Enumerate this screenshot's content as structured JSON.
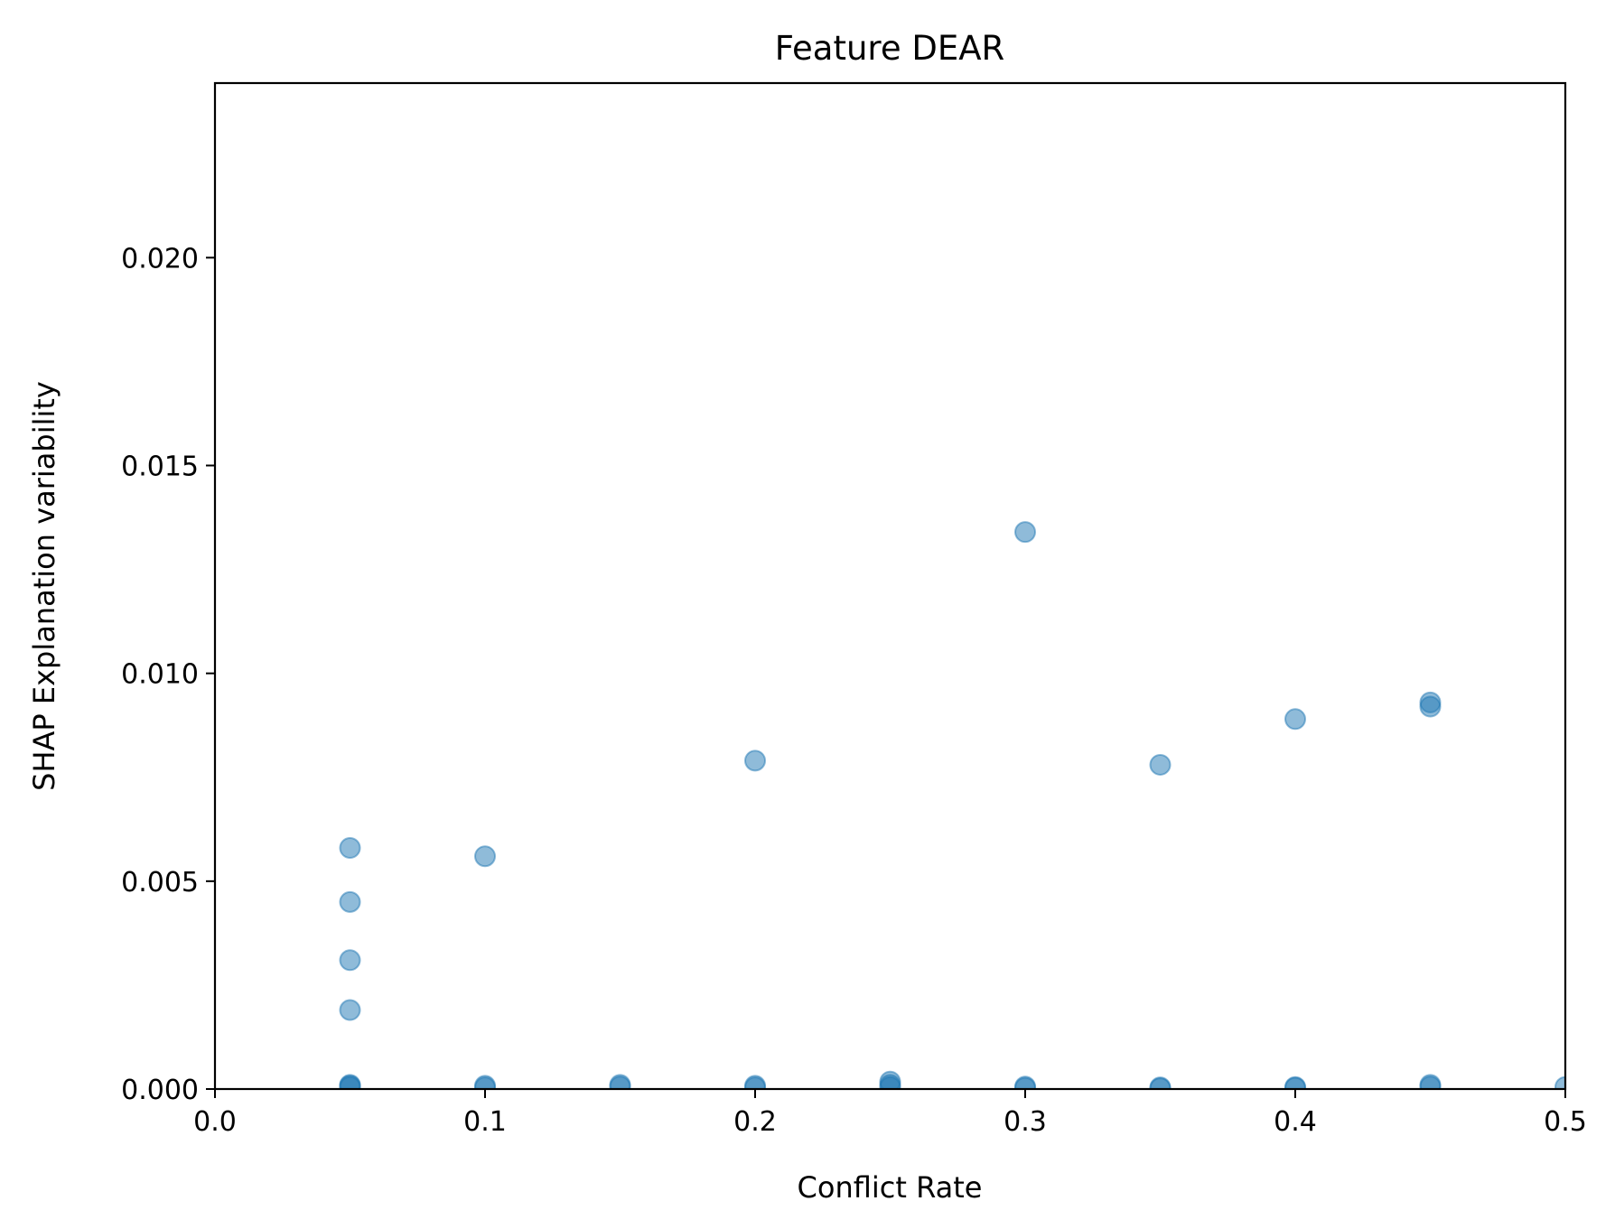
{
  "chart_data": {
    "type": "scatter",
    "title": "Feature DEAR",
    "xlabel": "Conflict Rate",
    "ylabel": "SHAP Explanation variability",
    "xlim": [
      0.0,
      0.5
    ],
    "ylim": [
      0.0,
      0.0242
    ],
    "xticks": [
      0.0,
      0.1,
      0.2,
      0.3,
      0.4,
      0.5
    ],
    "xtick_labels": [
      "0.0",
      "0.1",
      "0.2",
      "0.3",
      "0.4",
      "0.5"
    ],
    "yticks": [
      0.0,
      0.005,
      0.01,
      0.015,
      0.02
    ],
    "ytick_labels": [
      "0.000",
      "0.005",
      "0.010",
      "0.015",
      "0.020"
    ],
    "grid": false,
    "legend": "none",
    "marker_color": "#1f77b4",
    "marker_alpha": 0.5,
    "points": [
      {
        "x": 0.05,
        "y": 0.0058
      },
      {
        "x": 0.05,
        "y": 0.0045
      },
      {
        "x": 0.05,
        "y": 0.0031
      },
      {
        "x": 0.05,
        "y": 0.0019
      },
      {
        "x": 0.05,
        "y": 0.0001
      },
      {
        "x": 0.05,
        "y": 8e-05
      },
      {
        "x": 0.05,
        "y": 5e-05
      },
      {
        "x": 0.1,
        "y": 0.0056
      },
      {
        "x": 0.1,
        "y": 8e-05
      },
      {
        "x": 0.1,
        "y": 4e-05
      },
      {
        "x": 0.15,
        "y": 0.0001
      },
      {
        "x": 0.15,
        "y": 6e-05
      },
      {
        "x": 0.2,
        "y": 0.0079
      },
      {
        "x": 0.2,
        "y": 8e-05
      },
      {
        "x": 0.2,
        "y": 4e-05
      },
      {
        "x": 0.25,
        "y": 0.00018
      },
      {
        "x": 0.25,
        "y": 0.0001
      },
      {
        "x": 0.25,
        "y": 5e-05
      },
      {
        "x": 0.3,
        "y": 0.0134
      },
      {
        "x": 0.3,
        "y": 6e-05
      },
      {
        "x": 0.3,
        "y": 3e-05
      },
      {
        "x": 0.35,
        "y": 0.0078
      },
      {
        "x": 0.35,
        "y": 4e-05
      },
      {
        "x": 0.35,
        "y": 2e-05
      },
      {
        "x": 0.4,
        "y": 0.0089
      },
      {
        "x": 0.4,
        "y": 5e-05
      },
      {
        "x": 0.4,
        "y": 3e-05
      },
      {
        "x": 0.45,
        "y": 0.0093
      },
      {
        "x": 0.45,
        "y": 0.0092
      },
      {
        "x": 0.45,
        "y": 0.0001
      },
      {
        "x": 0.45,
        "y": 6e-05
      },
      {
        "x": 0.5,
        "y": 5e-05
      }
    ]
  }
}
